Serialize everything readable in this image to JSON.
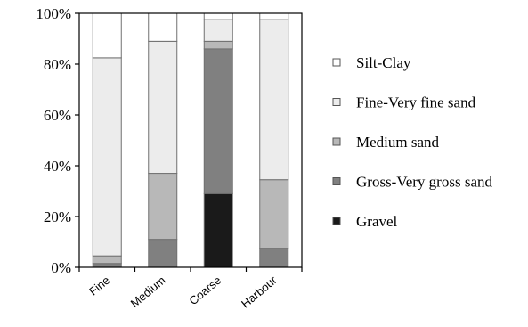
{
  "chart_data": {
    "type": "bar",
    "stacked": true,
    "categories": [
      "Fine",
      "Medium",
      "Coarse",
      "Harbour"
    ],
    "series": [
      {
        "name": "Gravel",
        "color": "#1a1a1a",
        "values": [
          0,
          0,
          29,
          0
        ]
      },
      {
        "name": "Gross-Very gross sand",
        "color": "#808080",
        "values": [
          1.5,
          11,
          57,
          7.5
        ]
      },
      {
        "name": "Medium sand",
        "color": "#b8b8b8",
        "values": [
          3,
          26,
          3,
          27
        ]
      },
      {
        "name": "Fine-Very fine sand",
        "color": "#ececec",
        "values": [
          78,
          52,
          8.5,
          63
        ]
      },
      {
        "name": "Silt-Clay",
        "color": "#ffffff",
        "values": [
          17.5,
          11,
          2.5,
          2.5
        ]
      }
    ],
    "ylim": [
      0,
      100
    ],
    "yticks": [
      "0%",
      "20%",
      "40%",
      "60%",
      "80%",
      "100%"
    ],
    "legend_position": "right",
    "legend_order": [
      "Silt-Clay",
      "Fine-Very fine sand",
      "Medium sand",
      "Gross-Very gross sand",
      "Gravel"
    ],
    "grid": false
  }
}
